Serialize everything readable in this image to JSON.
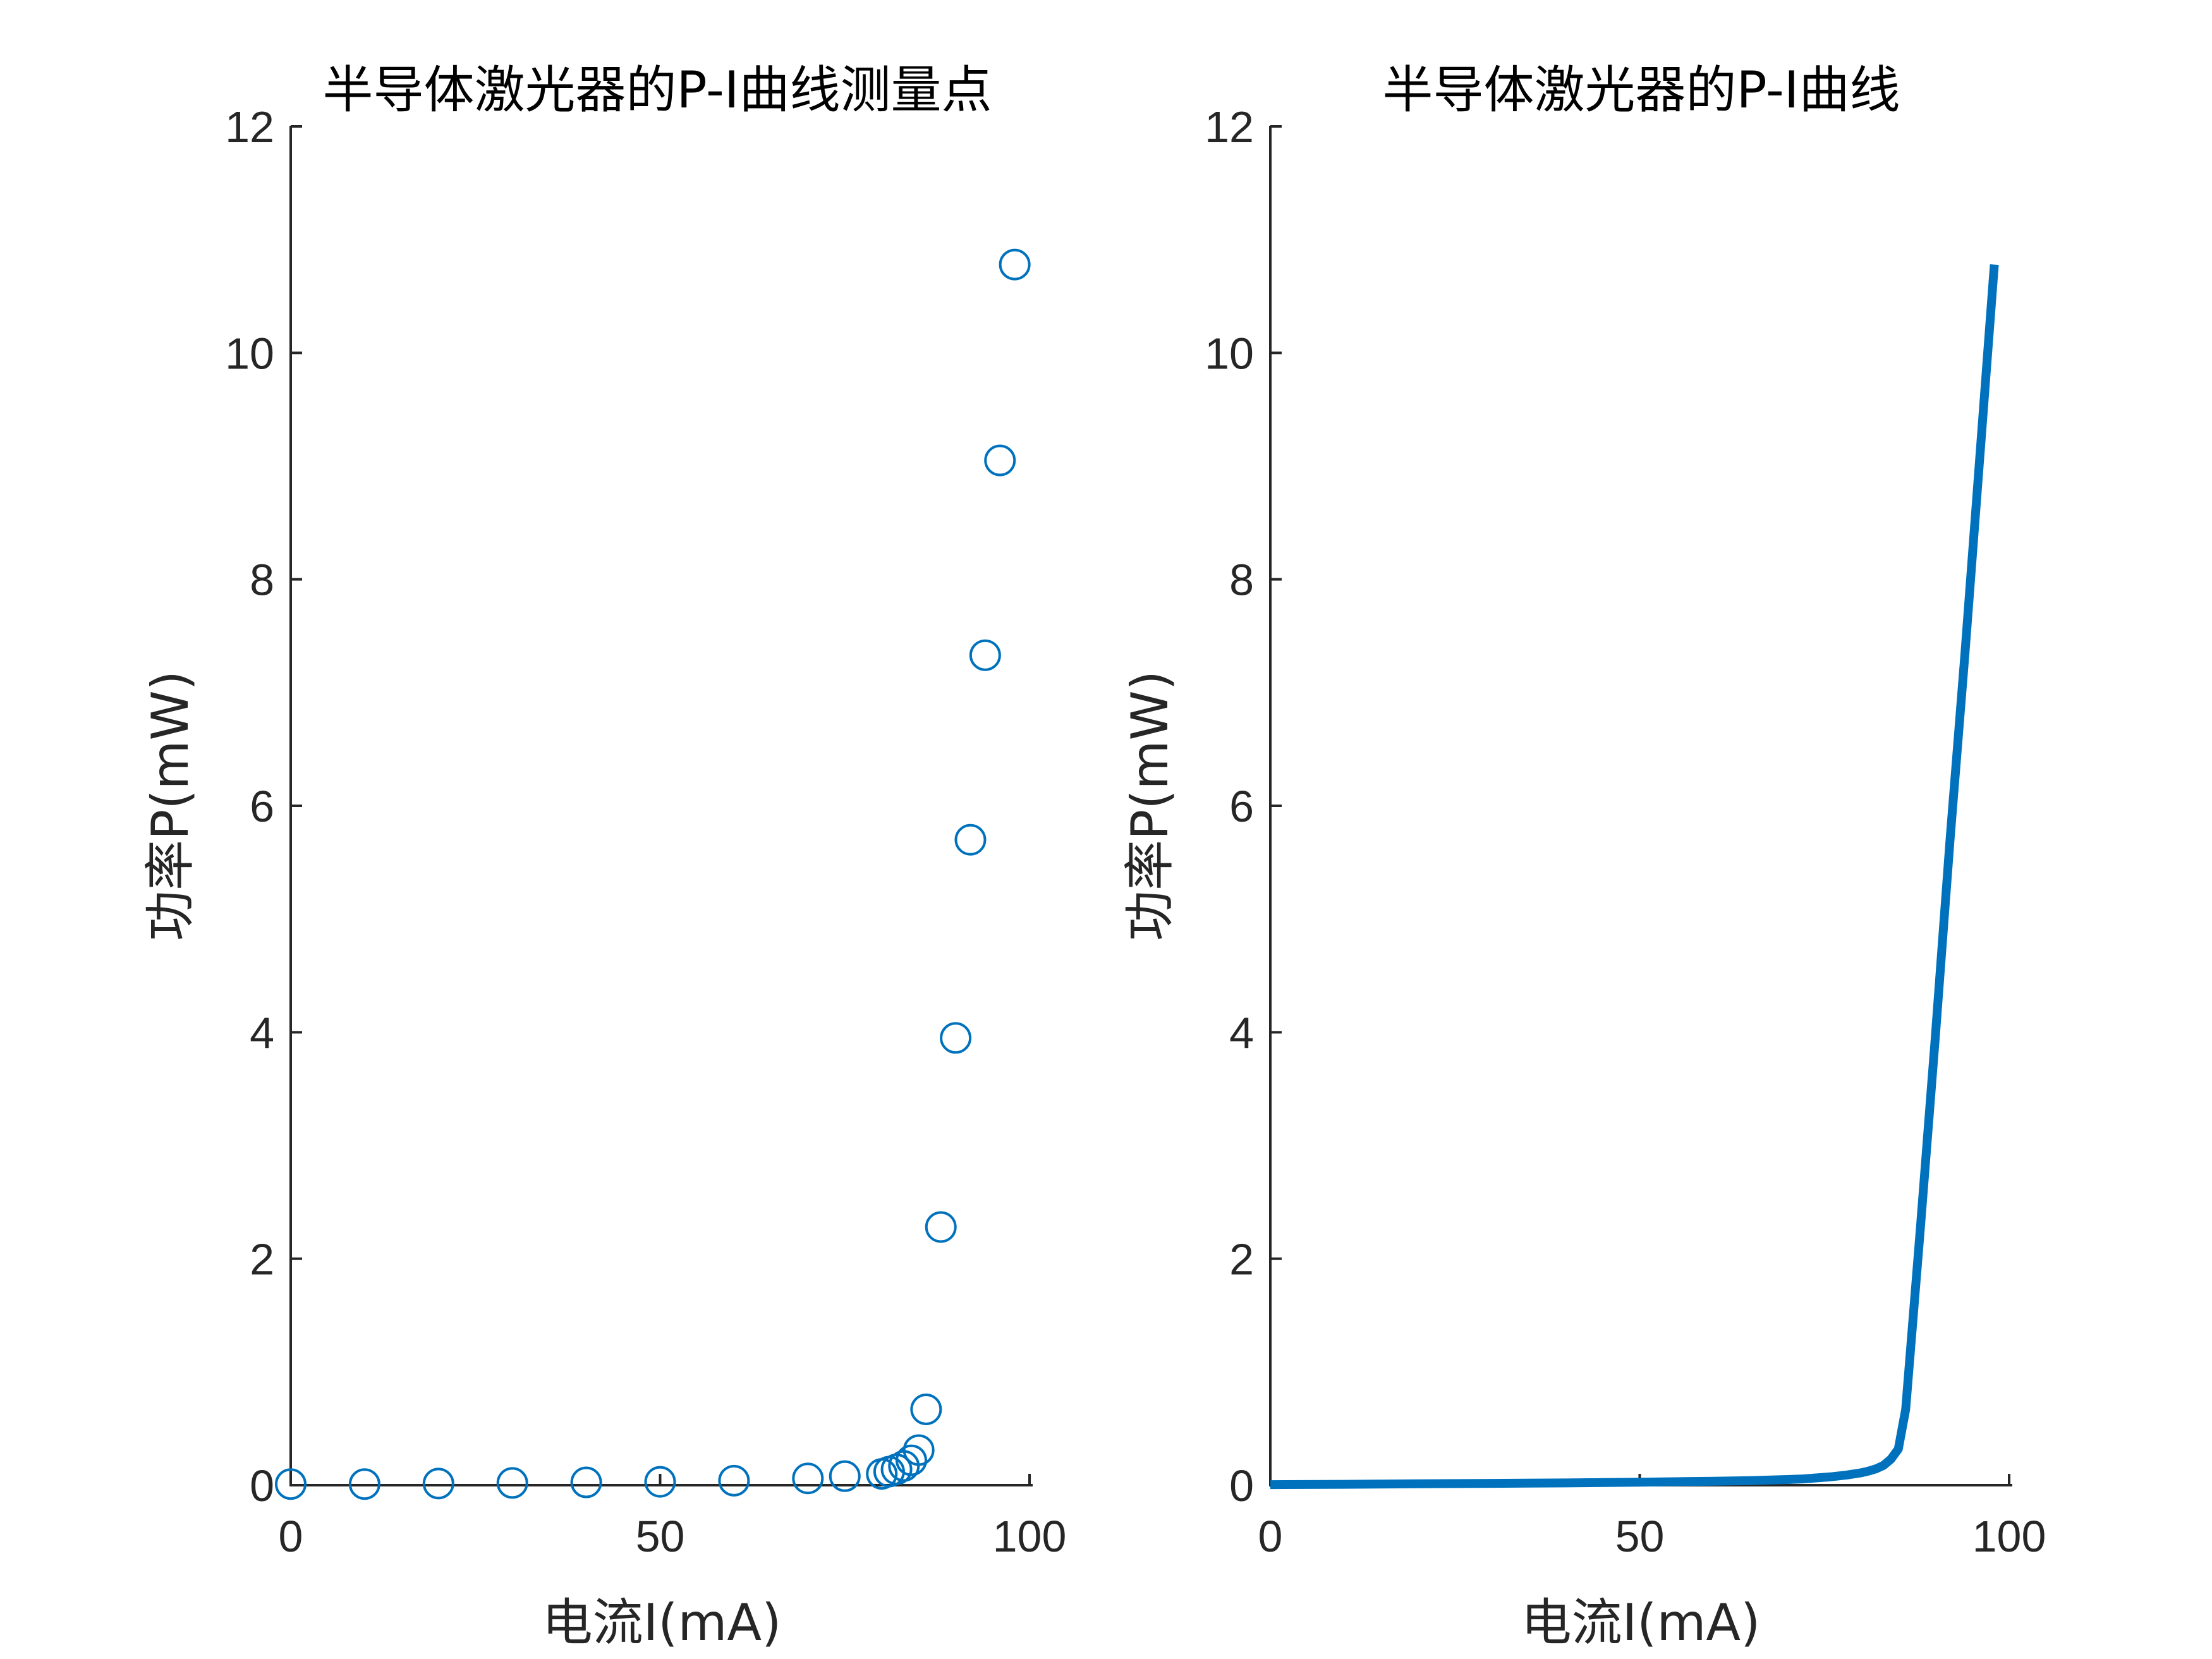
{
  "colors": {
    "series": "#0072BD",
    "axis": "#262626",
    "background": "#ffffff"
  },
  "chart_data": [
    {
      "type": "scatter",
      "title": "半导体激光器的P-I曲线测量点",
      "xlabel": "电流I(mA)",
      "ylabel": "功率P(mW)",
      "xlim": [
        0,
        100
      ],
      "ylim": [
        0,
        12
      ],
      "xticks": [
        0,
        50,
        100
      ],
      "yticks": [
        0,
        2,
        4,
        6,
        8,
        10,
        12
      ],
      "marker": "open-circle",
      "series": [
        {
          "x": [
            0,
            10,
            20,
            30,
            40,
            50,
            60,
            70,
            75,
            80,
            81,
            82,
            83,
            84,
            85,
            86,
            88,
            90,
            92,
            94,
            96,
            98
          ],
          "y": [
            0.01,
            0.01,
            0.015,
            0.02,
            0.025,
            0.03,
            0.04,
            0.06,
            0.08,
            0.1,
            0.12,
            0.14,
            0.17,
            0.22,
            0.31,
            0.67,
            2.28,
            3.95,
            5.7,
            7.33,
            9.05,
            10.78
          ]
        }
      ]
    },
    {
      "type": "line",
      "title": "半导体激光器的P-I曲线",
      "xlabel": "电流I(mA)",
      "ylabel": "功率P(mW)",
      "xlim": [
        0,
        100
      ],
      "ylim": [
        0,
        12
      ],
      "xticks": [
        0,
        50,
        100
      ],
      "yticks": [
        0,
        2,
        4,
        6,
        8,
        10,
        12
      ],
      "series": [
        {
          "x": [
            0,
            10,
            20,
            30,
            40,
            50,
            60,
            65,
            70,
            72,
            74,
            76,
            78,
            80,
            81,
            82,
            83,
            84,
            85,
            86,
            88,
            90,
            92,
            94,
            96,
            98
          ],
          "y": [
            0.005,
            0.008,
            0.012,
            0.016,
            0.02,
            0.027,
            0.035,
            0.04,
            0.05,
            0.055,
            0.065,
            0.075,
            0.09,
            0.11,
            0.125,
            0.145,
            0.175,
            0.23,
            0.32,
            0.67,
            2.28,
            3.95,
            5.7,
            7.33,
            9.05,
            10.78
          ]
        }
      ]
    }
  ]
}
